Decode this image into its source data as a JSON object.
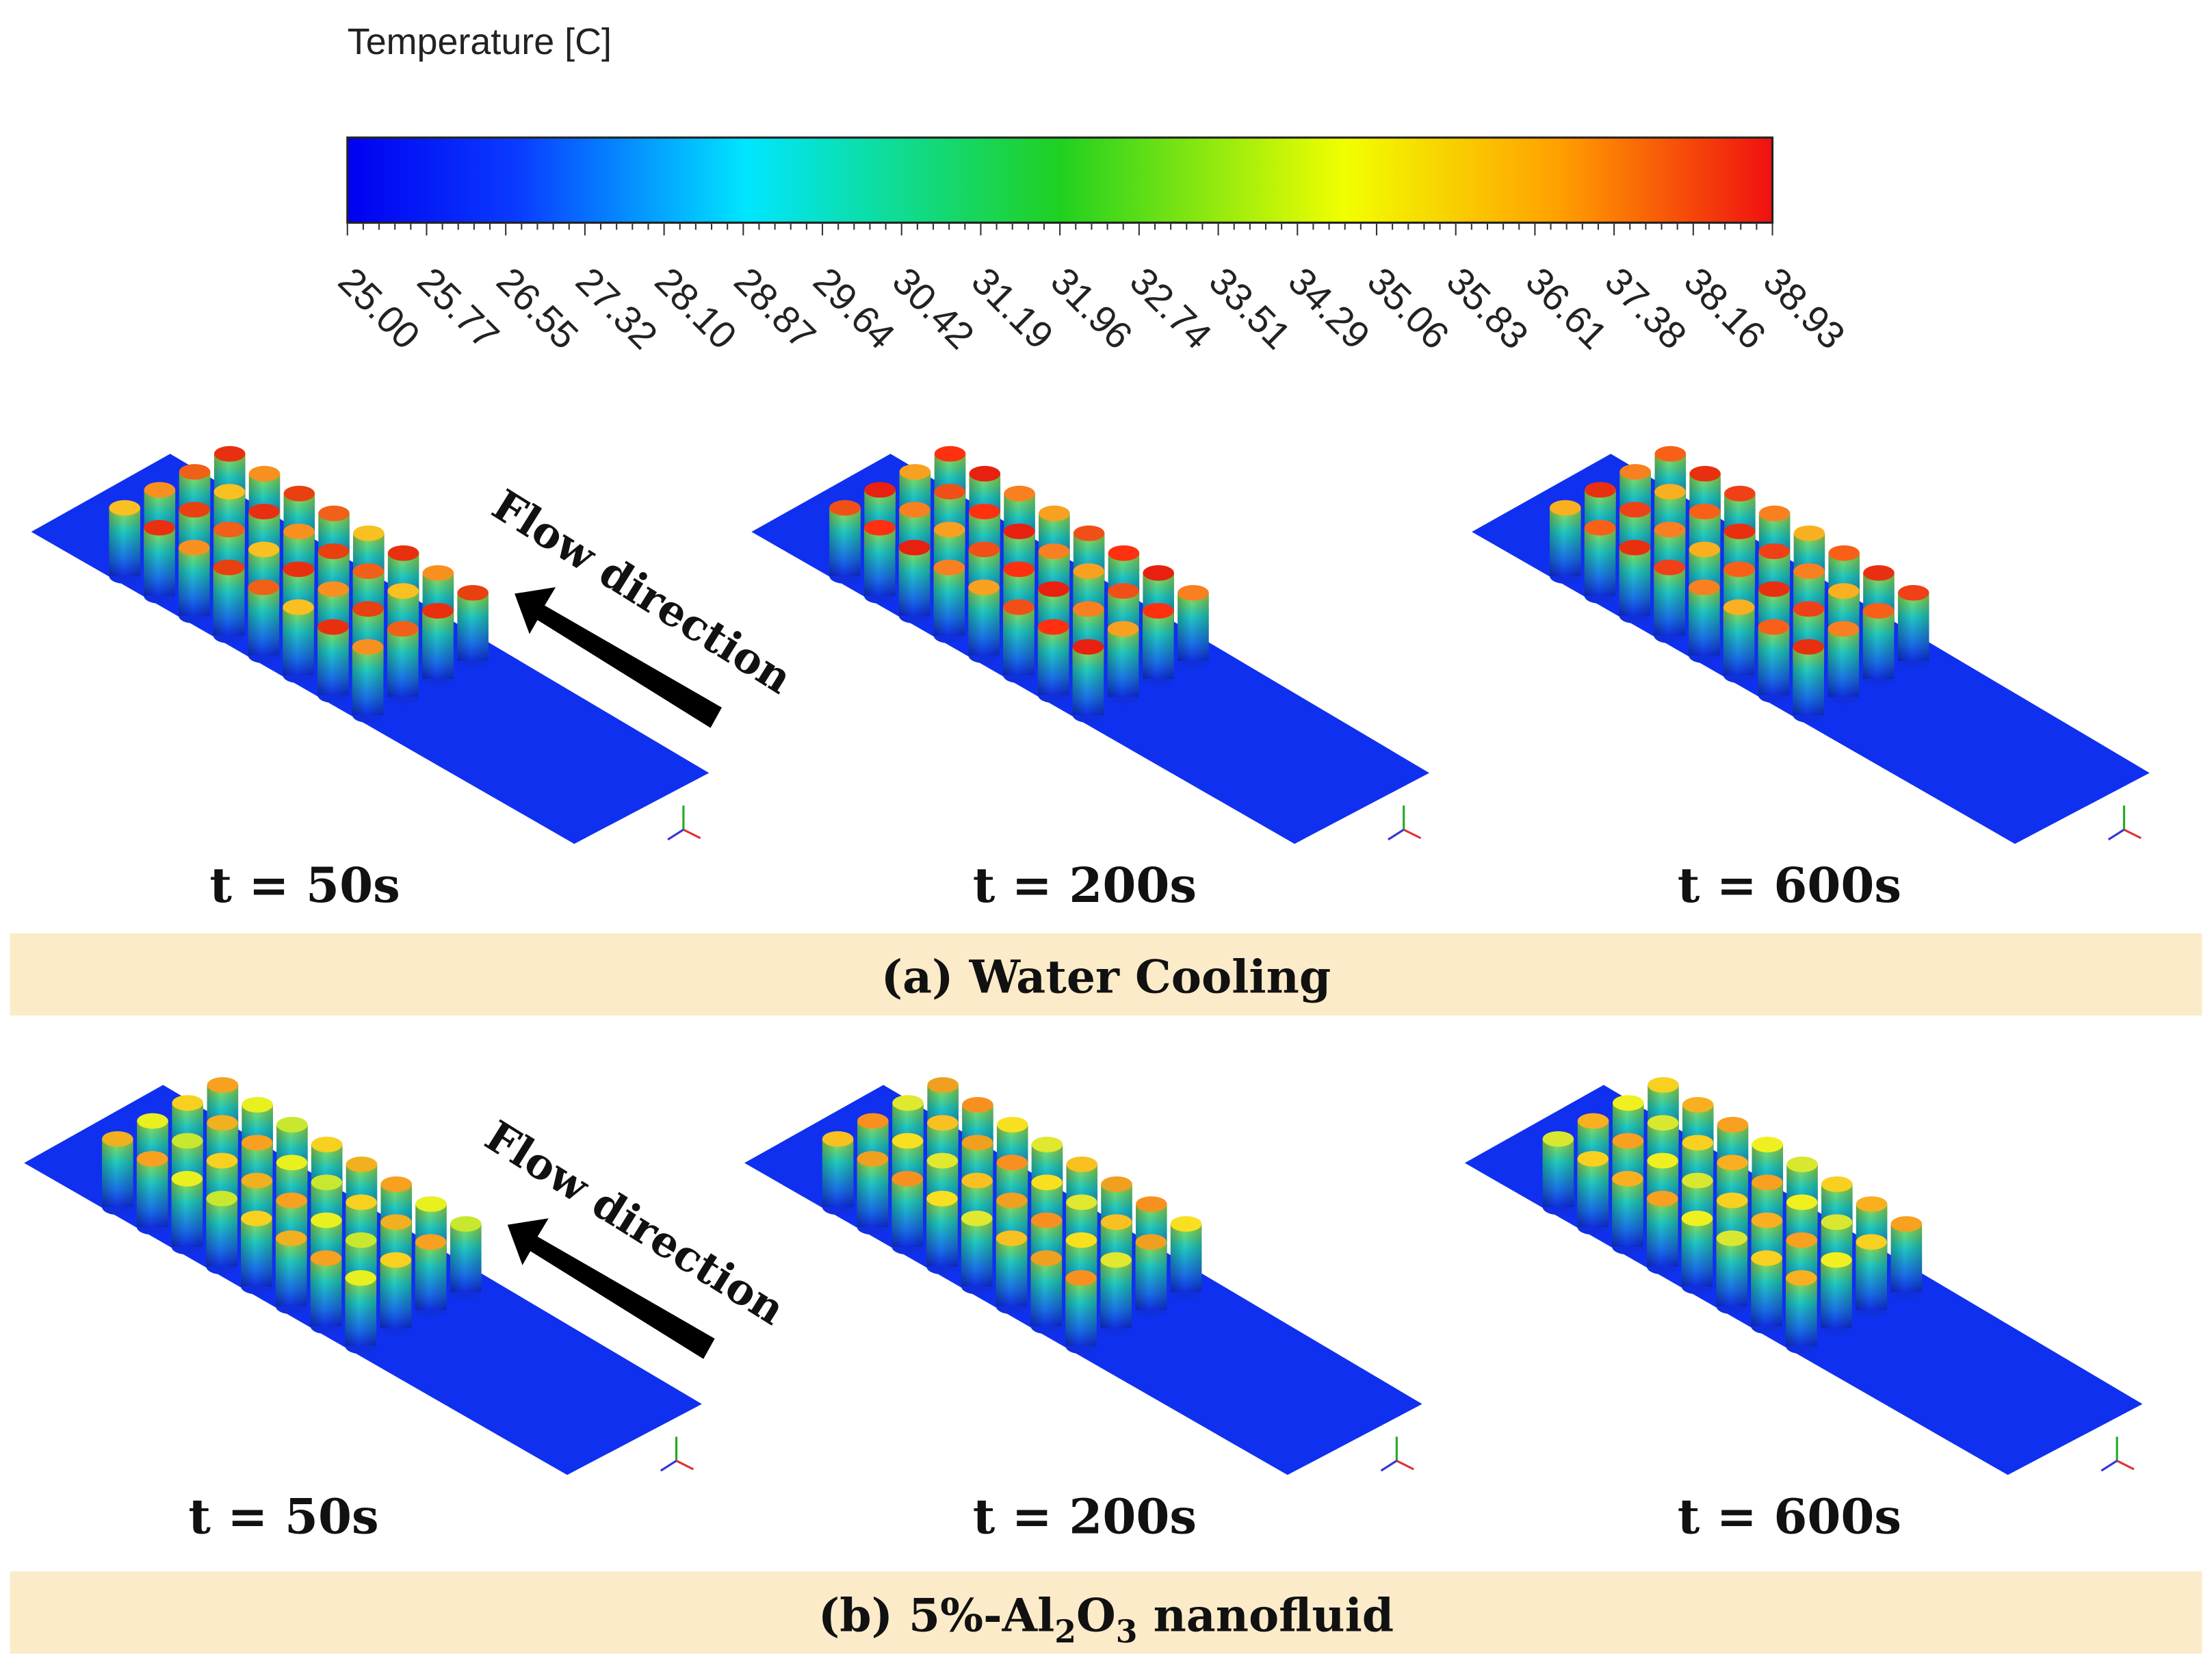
{
  "colorbar": {
    "title": "Temperature [C]",
    "ticks": [
      "25.00",
      "25.77",
      "26.55",
      "27.32",
      "28.10",
      "28.87",
      "29.64",
      "30.42",
      "31.19",
      "31.96",
      "32.74",
      "33.51",
      "34.29",
      "35.06",
      "35.83",
      "36.61",
      "37.38",
      "38.16",
      "38.93"
    ]
  },
  "rows": [
    {
      "times": [
        "t = 50s",
        "t = 200s",
        "t = 600s"
      ],
      "flow_label": "Flow direction",
      "caption": "(a) Water Cooling"
    },
    {
      "times": [
        "t = 50s",
        "t = 200s",
        "t = 600s"
      ],
      "flow_label": "Flow direction",
      "caption": [
        "(b) 5%-Al",
        "2",
        "O",
        "3",
        " nanofluid"
      ]
    }
  ]
}
